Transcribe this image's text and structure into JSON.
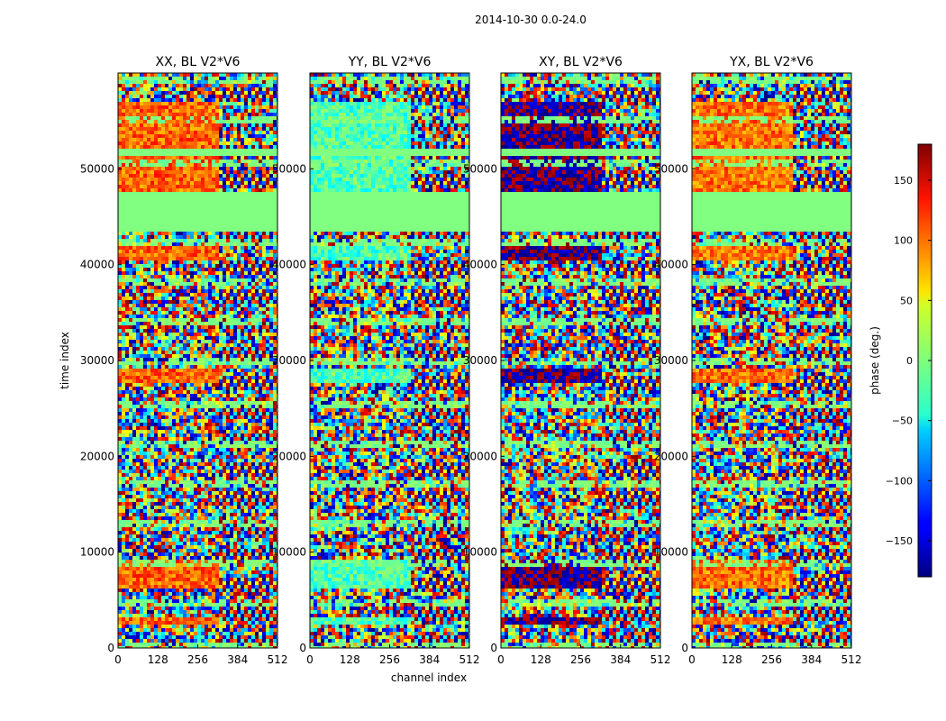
{
  "chart_data": {
    "type": "heatmap",
    "suptitle": "2014-10-30 0.0-24.0",
    "xlabel": "channel index",
    "ylabel": "time index",
    "xlim": [
      0,
      512
    ],
    "ylim": [
      0,
      60000
    ],
    "xticks": [
      0,
      128,
      256,
      384,
      512
    ],
    "xtick_labels": [
      "0",
      "128",
      "256",
      "384",
      "512"
    ],
    "yticks": [
      0,
      10000,
      20000,
      30000,
      40000,
      50000
    ],
    "ytick_labels": [
      "0",
      "10000",
      "20000",
      "30000",
      "40000",
      "50000"
    ],
    "colorbar": {
      "label": "phase (deg.)",
      "range": [
        -180,
        180
      ],
      "ticks": [
        -150,
        -100,
        -50,
        0,
        50,
        100,
        150
      ],
      "tick_labels": [
        "−150",
        "−100",
        "−50",
        "0",
        "50",
        "100",
        "150"
      ],
      "colormap": "jet"
    },
    "panels": [
      {
        "title": "XX, BL V2*V6",
        "coherent_phase_deg": 100,
        "coherent_channel_max": 320
      },
      {
        "title": "YY, BL V2*V6",
        "coherent_phase_deg": -20,
        "coherent_channel_max": 320
      },
      {
        "title": "XY, BL V2*V6",
        "coherent_phase_deg": -175,
        "coherent_channel_max": 320
      },
      {
        "title": "YX, BL V2*V6",
        "coherent_phase_deg": 95,
        "coherent_channel_max": 320
      }
    ],
    "flagged_time_ranges": [
      [
        43300,
        47500
      ],
      [
        51300,
        52000
      ]
    ],
    "coherent_time_ranges": [
      [
        2400,
        3200
      ],
      [
        6200,
        9200
      ],
      [
        27800,
        29200
      ],
      [
        40500,
        42000
      ],
      [
        47500,
        51300
      ],
      [
        51300,
        57000
      ]
    ]
  }
}
